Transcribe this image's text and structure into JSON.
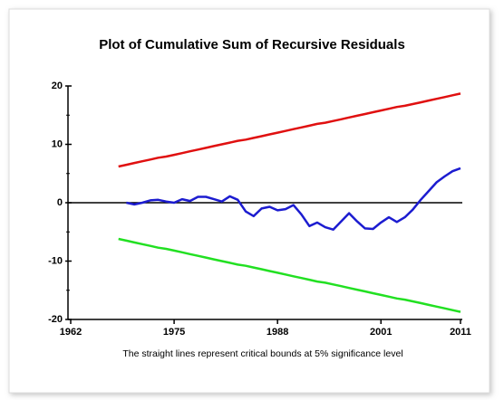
{
  "chart_data": {
    "type": "line",
    "title": "Plot of Cumulative Sum of Recursive Residuals",
    "caption": "The straight lines represent critical bounds at 5% significance level",
    "x": [
      1968,
      1969,
      1970,
      1971,
      1972,
      1973,
      1974,
      1975,
      1976,
      1977,
      1978,
      1979,
      1980,
      1981,
      1982,
      1983,
      1984,
      1985,
      1986,
      1987,
      1988,
      1989,
      1990,
      1991,
      1992,
      1993,
      1994,
      1995,
      1996,
      1997,
      1998,
      1999,
      2000,
      2001,
      2002,
      2003,
      2004,
      2005,
      2006,
      2007,
      2008,
      2009,
      2010,
      2011
    ],
    "series": [
      {
        "color": "#e01010",
        "values": [
          6.2,
          6.5,
          6.8,
          7.1,
          7.4,
          7.7,
          7.9,
          8.2,
          8.5,
          8.8,
          9.1,
          9.4,
          9.7,
          10.0,
          10.3,
          10.6,
          10.8,
          11.1,
          11.4,
          11.7,
          12.0,
          12.3,
          12.6,
          12.9,
          13.2,
          13.5,
          13.7,
          14.0,
          14.3,
          14.6,
          14.9,
          15.2,
          15.5,
          15.8,
          16.1,
          16.4,
          16.6,
          16.9,
          17.2,
          17.5,
          17.8,
          18.1,
          18.4,
          18.7
        ]
      },
      {
        "color": "#1c1cd0",
        "values": [
          null,
          0,
          -0.3,
          0,
          0.4,
          0.5,
          0.2,
          0,
          0.6,
          0.3,
          1.0,
          1.0,
          0.6,
          0.2,
          1.1,
          0.5,
          -1.5,
          -2.3,
          -1.0,
          -0.7,
          -1.3,
          -1.1,
          -0.4,
          -2.0,
          -4.0,
          -3.4,
          -4.2,
          -4.6,
          -3.2,
          -1.8,
          -3.2,
          -4.4,
          -4.5,
          -3.4,
          -2.5,
          -3.3,
          -2.5,
          -1.2,
          0.5,
          2.0,
          3.5,
          4.5,
          5.4,
          5.9
        ]
      },
      {
        "color": "#22e022",
        "values": [
          -6.2,
          -6.5,
          -6.8,
          -7.1,
          -7.4,
          -7.7,
          -7.9,
          -8.2,
          -8.5,
          -8.8,
          -9.1,
          -9.4,
          -9.7,
          -10.0,
          -10.3,
          -10.6,
          -10.8,
          -11.1,
          -11.4,
          -11.7,
          -12.0,
          -12.3,
          -12.6,
          -12.9,
          -13.2,
          -13.5,
          -13.7,
          -14.0,
          -14.3,
          -14.6,
          -14.9,
          -15.2,
          -15.5,
          -15.8,
          -16.1,
          -16.4,
          -16.6,
          -16.9,
          -17.2,
          -17.5,
          -17.8,
          -18.1,
          -18.4,
          -18.7
        ]
      }
    ],
    "xlim": [
      1962,
      2011
    ],
    "xticks": [
      1962,
      1975,
      1988,
      2001,
      2011
    ],
    "ylim": [
      -20,
      20
    ],
    "yticks": [
      20,
      10,
      0,
      -10,
      -20
    ],
    "yminor_ticks": [
      15,
      5,
      -5,
      -15
    ],
    "reference_line": 0
  }
}
